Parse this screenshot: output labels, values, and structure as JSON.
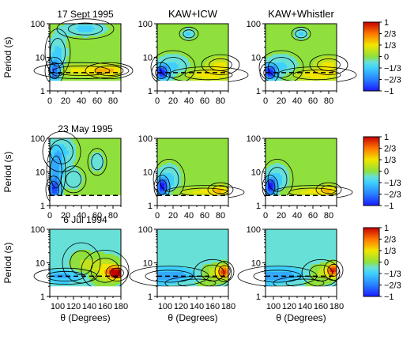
{
  "figure": {
    "column_titles": [
      "",
      "KAW+ICW",
      "KAW+Whistler"
    ],
    "colorbar_ticks": [
      "1",
      "2/3",
      "1/3",
      "0",
      "−1/3",
      "−2/3",
      "−1"
    ],
    "colors": {
      "neg_max": "#1a1aff",
      "neg_mid": "#3fd0ff",
      "neutral": "#8fe03c",
      "pos_mid": "#f2e600",
      "pos_max": "#c80000",
      "contour": "#000000"
    }
  },
  "chart_data": [
    {
      "type": "heatmap",
      "row": 0,
      "col": 0,
      "title": "17 Sept 1995",
      "xlabel": "",
      "ylabel": "Period (s)",
      "xlim": [
        0,
        90
      ],
      "ylim": [
        1,
        100
      ],
      "yscale": "log",
      "xticks": [
        "0",
        "20",
        "40",
        "60",
        "80"
      ],
      "yticks": [
        "1",
        "10",
        "100"
      ],
      "value_range": [
        -1,
        1
      ],
      "dashed_line_period": 3.5,
      "features": [
        {
          "x": 6,
          "period": 4,
          "value": -0.85,
          "sx": 6,
          "sy": 0.2
        },
        {
          "x": 10,
          "period": 14,
          "value": -0.3,
          "sx": 8,
          "sy": 0.35
        },
        {
          "x": 40,
          "period": 4,
          "value": 0.3,
          "sx": 30,
          "sy": 0.12
        },
        {
          "x": 75,
          "period": 4,
          "value": 0.35,
          "sx": 15,
          "sy": 0.12
        },
        {
          "x": 45,
          "period": 70,
          "value": -0.3,
          "sx": 18,
          "sy": 0.15
        }
      ]
    },
    {
      "type": "heatmap",
      "row": 0,
      "col": 1,
      "title": "",
      "xlabel": "",
      "ylabel": "",
      "xlim": [
        0,
        90
      ],
      "ylim": [
        1,
        100
      ],
      "yscale": "log",
      "xticks": [
        "0",
        "20",
        "40",
        "60",
        "80"
      ],
      "yticks": [
        "1",
        "10",
        "100"
      ],
      "value_range": [
        -1,
        1
      ],
      "dashed_line_period": 3.5,
      "features": [
        {
          "x": 5,
          "period": 3.5,
          "value": -0.95,
          "sx": 6,
          "sy": 0.15
        },
        {
          "x": 20,
          "period": 5,
          "value": -0.3,
          "sx": 14,
          "sy": 0.25
        },
        {
          "x": 65,
          "period": 3,
          "value": 0.35,
          "sx": 25,
          "sy": 0.12
        },
        {
          "x": 80,
          "period": 6,
          "value": 0.3,
          "sx": 12,
          "sy": 0.15
        },
        {
          "x": 40,
          "period": 50,
          "value": -0.3,
          "sx": 6,
          "sy": 0.1
        }
      ]
    },
    {
      "type": "heatmap",
      "row": 0,
      "col": 2,
      "title": "",
      "xlabel": "",
      "ylabel": "",
      "xlim": [
        0,
        90
      ],
      "ylim": [
        1,
        100
      ],
      "yscale": "log",
      "xticks": [
        "0",
        "20",
        "40",
        "60",
        "80"
      ],
      "yticks": [
        "1",
        "10",
        "100"
      ],
      "value_range": [
        -1,
        1
      ],
      "dashed_line_period": 3.5,
      "features": [
        {
          "x": 5,
          "period": 3.5,
          "value": -0.95,
          "sx": 6,
          "sy": 0.15
        },
        {
          "x": 20,
          "period": 5,
          "value": -0.3,
          "sx": 14,
          "sy": 0.25
        },
        {
          "x": 65,
          "period": 3,
          "value": 0.35,
          "sx": 25,
          "sy": 0.12
        },
        {
          "x": 80,
          "period": 6,
          "value": 0.3,
          "sx": 12,
          "sy": 0.15
        },
        {
          "x": 45,
          "period": 50,
          "value": -0.3,
          "sx": 6,
          "sy": 0.1
        }
      ]
    },
    {
      "type": "heatmap",
      "row": 1,
      "col": 0,
      "title": "23 May 1995",
      "xlabel": "",
      "ylabel": "Period (s)",
      "xlim": [
        0,
        90
      ],
      "ylim": [
        1,
        100
      ],
      "yscale": "log",
      "xticks": [
        "0",
        "20",
        "40",
        "60",
        "80"
      ],
      "yticks": [
        "1",
        "10",
        "100"
      ],
      "value_range": [
        -1,
        1
      ],
      "dashed_line_period": 2,
      "features": [
        {
          "x": 5,
          "period": 3,
          "value": -0.75,
          "sx": 5,
          "sy": 0.2
        },
        {
          "x": 8,
          "period": 10,
          "value": -0.5,
          "sx": 6,
          "sy": 0.4
        },
        {
          "x": 15,
          "period": 40,
          "value": -0.3,
          "sx": 12,
          "sy": 0.3
        },
        {
          "x": 30,
          "period": 6,
          "value": -0.25,
          "sx": 8,
          "sy": 0.2
        },
        {
          "x": 60,
          "period": 20,
          "value": -0.25,
          "sx": 6,
          "sy": 0.2
        }
      ]
    },
    {
      "type": "heatmap",
      "row": 1,
      "col": 1,
      "title": "",
      "xlabel": "",
      "ylabel": "",
      "xlim": [
        0,
        90
      ],
      "ylim": [
        1,
        100
      ],
      "yscale": "log",
      "xticks": [
        "0",
        "20",
        "40",
        "60",
        "80"
      ],
      "yticks": [
        "1",
        "10",
        "100"
      ],
      "value_range": [
        -1,
        1
      ],
      "dashed_line_period": 2,
      "features": [
        {
          "x": 6,
          "period": 3.5,
          "value": -0.95,
          "sx": 5,
          "sy": 0.18
        },
        {
          "x": 15,
          "period": 6,
          "value": -0.3,
          "sx": 10,
          "sy": 0.3
        },
        {
          "x": 60,
          "period": 2.5,
          "value": 0.3,
          "sx": 25,
          "sy": 0.1
        },
        {
          "x": 80,
          "period": 3,
          "value": 0.3,
          "sx": 8,
          "sy": 0.1
        }
      ]
    },
    {
      "type": "heatmap",
      "row": 1,
      "col": 2,
      "title": "",
      "xlabel": "",
      "ylabel": "",
      "xlim": [
        0,
        90
      ],
      "ylim": [
        1,
        100
      ],
      "yscale": "log",
      "xticks": [
        "0",
        "20",
        "40",
        "60",
        "80"
      ],
      "yticks": [
        "1",
        "10",
        "100"
      ],
      "value_range": [
        -1,
        1
      ],
      "dashed_line_period": 2,
      "features": [
        {
          "x": 6,
          "period": 3.5,
          "value": -0.95,
          "sx": 5,
          "sy": 0.18
        },
        {
          "x": 15,
          "period": 6,
          "value": -0.3,
          "sx": 10,
          "sy": 0.3
        },
        {
          "x": 60,
          "period": 2.5,
          "value": 0.3,
          "sx": 25,
          "sy": 0.1
        },
        {
          "x": 80,
          "period": 3,
          "value": 0.3,
          "sx": 8,
          "sy": 0.1
        }
      ]
    },
    {
      "type": "heatmap",
      "row": 2,
      "col": 0,
      "title": "6 Jul 1994",
      "xlabel": "θ (Degrees)",
      "ylabel": "Period (s)",
      "xlim": [
        90,
        180
      ],
      "ylim": [
        1,
        100
      ],
      "yscale": "log",
      "xticks": [
        "100",
        "120",
        "140",
        "160",
        "180"
      ],
      "yticks": [
        "1",
        "10",
        "100"
      ],
      "value_range": [
        -1,
        1
      ],
      "dashed_line_period": 4,
      "base": -0.2,
      "features": [
        {
          "x": 175,
          "period": 5,
          "value": 1.3,
          "sx": 7,
          "sy": 0.12
        },
        {
          "x": 160,
          "period": 6,
          "value": 0.5,
          "sx": 15,
          "sy": 0.3
        },
        {
          "x": 130,
          "period": 10,
          "value": 0.25,
          "sx": 12,
          "sy": 0.3
        },
        {
          "x": 110,
          "period": 4,
          "value": -0.3,
          "sx": 20,
          "sy": 0.12
        }
      ]
    },
    {
      "type": "heatmap",
      "row": 2,
      "col": 1,
      "title": "",
      "xlabel": "θ (Degrees)",
      "ylabel": "",
      "xlim": [
        90,
        180
      ],
      "ylim": [
        1,
        100
      ],
      "yscale": "log",
      "xticks": [
        "100",
        "120",
        "140",
        "160",
        "180"
      ],
      "yticks": [
        "1",
        "10",
        "100"
      ],
      "value_range": [
        -1,
        1
      ],
      "dashed_line_period": 4,
      "base": -0.2,
      "features": [
        {
          "x": 175,
          "period": 5.5,
          "value": 0.9,
          "sx": 6,
          "sy": 0.15
        },
        {
          "x": 160,
          "period": 5,
          "value": 0.35,
          "sx": 12,
          "sy": 0.2
        },
        {
          "x": 105,
          "period": 4,
          "value": -0.35,
          "sx": 25,
          "sy": 0.15
        },
        {
          "x": 140,
          "period": 2.5,
          "value": 0.15,
          "sx": 20,
          "sy": 0.1
        }
      ]
    },
    {
      "type": "heatmap",
      "row": 2,
      "col": 2,
      "title": "",
      "xlabel": "θ (Degrees)",
      "ylabel": "",
      "xlim": [
        90,
        180
      ],
      "ylim": [
        1,
        100
      ],
      "yscale": "log",
      "xticks": [
        "100",
        "120",
        "140",
        "160",
        "180"
      ],
      "yticks": [
        "1",
        "10",
        "100"
      ],
      "value_range": [
        -1,
        1
      ],
      "dashed_line_period": 4,
      "base": -0.2,
      "features": [
        {
          "x": 176,
          "period": 6,
          "value": 1.0,
          "sx": 6,
          "sy": 0.15
        },
        {
          "x": 160,
          "period": 5,
          "value": 0.35,
          "sx": 12,
          "sy": 0.2
        },
        {
          "x": 105,
          "period": 4,
          "value": -0.35,
          "sx": 25,
          "sy": 0.15
        },
        {
          "x": 140,
          "period": 2.5,
          "value": 0.15,
          "sx": 20,
          "sy": 0.1
        }
      ]
    }
  ]
}
